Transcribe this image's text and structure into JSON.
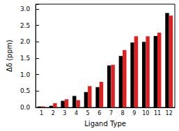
{
  "chart_data": {
    "type": "bar",
    "x_label": "Ligand Type",
    "y_label": "Δδ (ppm)",
    "categories": [
      "1",
      "2",
      "3",
      "4",
      "5",
      "6",
      "7",
      "8",
      "9",
      "10",
      "11",
      "12"
    ],
    "series": [
      {
        "color": "#000000",
        "values": [
          0.03,
          0.05,
          0.2,
          0.35,
          0.47,
          0.62,
          1.28,
          1.57,
          1.98,
          2.0,
          2.18,
          2.88
        ]
      },
      {
        "color": "#e02020",
        "values": [
          0.03,
          0.13,
          0.25,
          0.22,
          0.65,
          0.78,
          1.3,
          1.75,
          2.17,
          2.17,
          2.28,
          2.8
        ]
      }
    ],
    "ylim": [
      0,
      3.15
    ],
    "yticks": [
      {
        "value": 0,
        "label": "0.0"
      },
      {
        "value": 0.5,
        "label": "0.5"
      },
      {
        "value": 1,
        "label": "1.0"
      },
      {
        "value": 1.5,
        "label": "1.5"
      },
      {
        "value": 2,
        "label": "2.0"
      },
      {
        "value": 2.5,
        "label": "2.5"
      },
      {
        "value": 3,
        "label": "3.0"
      }
    ],
    "grid": false
  }
}
